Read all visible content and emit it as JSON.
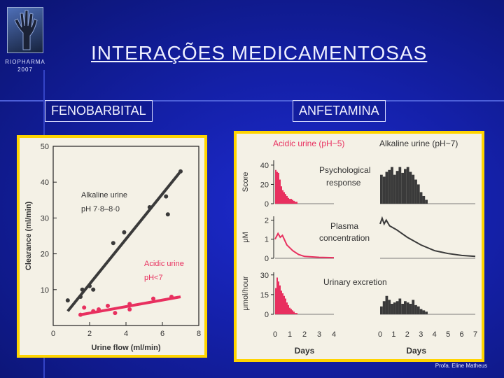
{
  "header": {
    "logo_line1": "RIOPHARMA",
    "logo_line2": "2007",
    "title": "INTERAÇÕES MEDICAMENTOSAS"
  },
  "labels": {
    "left": "FENOBARBITAL",
    "right": "ANFETAMINA"
  },
  "footer": "Profa. Eline Matheus",
  "colors": {
    "background": "#1420a8",
    "panel_border": "#ffd400",
    "pink": "#e8305f",
    "dark": "#3a3a3a"
  },
  "chart_data": [
    {
      "type": "scatter",
      "xlabel": "Urine flow (ml/min)",
      "ylabel": "Clearance (ml/min)",
      "xlim": [
        0,
        8
      ],
      "ylim": [
        0,
        50
      ],
      "x_ticks": [
        "0",
        "2",
        "4",
        "6",
        "8"
      ],
      "y_ticks": [
        "10",
        "20",
        "30",
        "40",
        "50"
      ],
      "annotations": [
        "Alkaline urine",
        "pH 7·8–8·0",
        "Acidic urine",
        "pH<7"
      ],
      "series": [
        {
          "name": "Alkaline urine",
          "points": [
            [
              0.8,
              7
            ],
            [
              1.5,
              8
            ],
            [
              1.6,
              10
            ],
            [
              2.0,
              11
            ],
            [
              2.2,
              10
            ],
            [
              3.3,
              23
            ],
            [
              3.9,
              26
            ],
            [
              5.3,
              33
            ],
            [
              6.2,
              36
            ],
            [
              6.3,
              31
            ],
            [
              7.0,
              43
            ]
          ],
          "fit": [
            [
              0.8,
              4
            ],
            [
              7.0,
              43
            ]
          ]
        },
        {
          "name": "Acidic urine",
          "points": [
            [
              1.5,
              3
            ],
            [
              1.7,
              5
            ],
            [
              2.2,
              4
            ],
            [
              2.5,
              4.5
            ],
            [
              3.0,
              5.5
            ],
            [
              3.4,
              3.5
            ],
            [
              4.2,
              6
            ],
            [
              4.2,
              4.5
            ],
            [
              5.5,
              7.5
            ],
            [
              6.5,
              8
            ]
          ],
          "fit": [
            [
              1.5,
              3
            ],
            [
              7.0,
              8
            ]
          ]
        }
      ]
    },
    {
      "type": "bar",
      "titles": [
        "Acidic urine (pH~5)",
        "Alkaline urine (pH~7)"
      ],
      "xlabel": "Days",
      "x_ticks_acidic": [
        "0",
        "1",
        "2",
        "3",
        "4"
      ],
      "x_ticks_alkaline": [
        "0",
        "1",
        "2",
        "3",
        "4",
        "5",
        "6",
        "7"
      ],
      "panels": [
        {
          "name": "Psychological response",
          "ylabel": "Score",
          "y_ticks": [
            "0",
            "20",
            "40"
          ],
          "ylim": [
            0,
            45
          ],
          "acidic": [
            35,
            33,
            32,
            25,
            18,
            14,
            12,
            10,
            8,
            6,
            5,
            5,
            4,
            3,
            2,
            2
          ],
          "alkaline": [
            30,
            28,
            33,
            35,
            38,
            30,
            34,
            38,
            32,
            36,
            38,
            33,
            30,
            25,
            20,
            12,
            8,
            4
          ]
        },
        {
          "name": "Plasma concentration",
          "ylabel": "μM",
          "y_ticks": [
            "0",
            "1",
            "2"
          ],
          "ylim": [
            0,
            2.2
          ],
          "acidic": [
            [
              0,
              1.0
            ],
            [
              0.2,
              1.3
            ],
            [
              0.35,
              1.1
            ],
            [
              0.5,
              1.2
            ],
            [
              0.8,
              0.7
            ],
            [
              1.2,
              0.4
            ],
            [
              1.6,
              0.2
            ],
            [
              2.0,
              0.1
            ],
            [
              3,
              0.05
            ],
            [
              4,
              0.03
            ]
          ],
          "alkaline": [
            [
              0,
              1.8
            ],
            [
              0.15,
              2.1
            ],
            [
              0.3,
              1.8
            ],
            [
              0.45,
              2.0
            ],
            [
              0.7,
              1.7
            ],
            [
              1.2,
              1.5
            ],
            [
              2,
              1.1
            ],
            [
              3,
              0.7
            ],
            [
              4,
              0.4
            ],
            [
              5,
              0.25
            ],
            [
              6,
              0.15
            ],
            [
              7,
              0.1
            ]
          ]
        },
        {
          "name": "Urinary excretion",
          "ylabel": "μmol/hour",
          "y_ticks": [
            "0",
            "15",
            "30"
          ],
          "ylim": [
            0,
            32
          ],
          "acidic": [
            20,
            28,
            25,
            22,
            18,
            16,
            14,
            12,
            9,
            7,
            5,
            4,
            3,
            2,
            1,
            1
          ],
          "alkaline": [
            6,
            10,
            14,
            11,
            8,
            9,
            10,
            12,
            8,
            10,
            9,
            8,
            11,
            7,
            6,
            4,
            3,
            2
          ]
        }
      ]
    }
  ]
}
